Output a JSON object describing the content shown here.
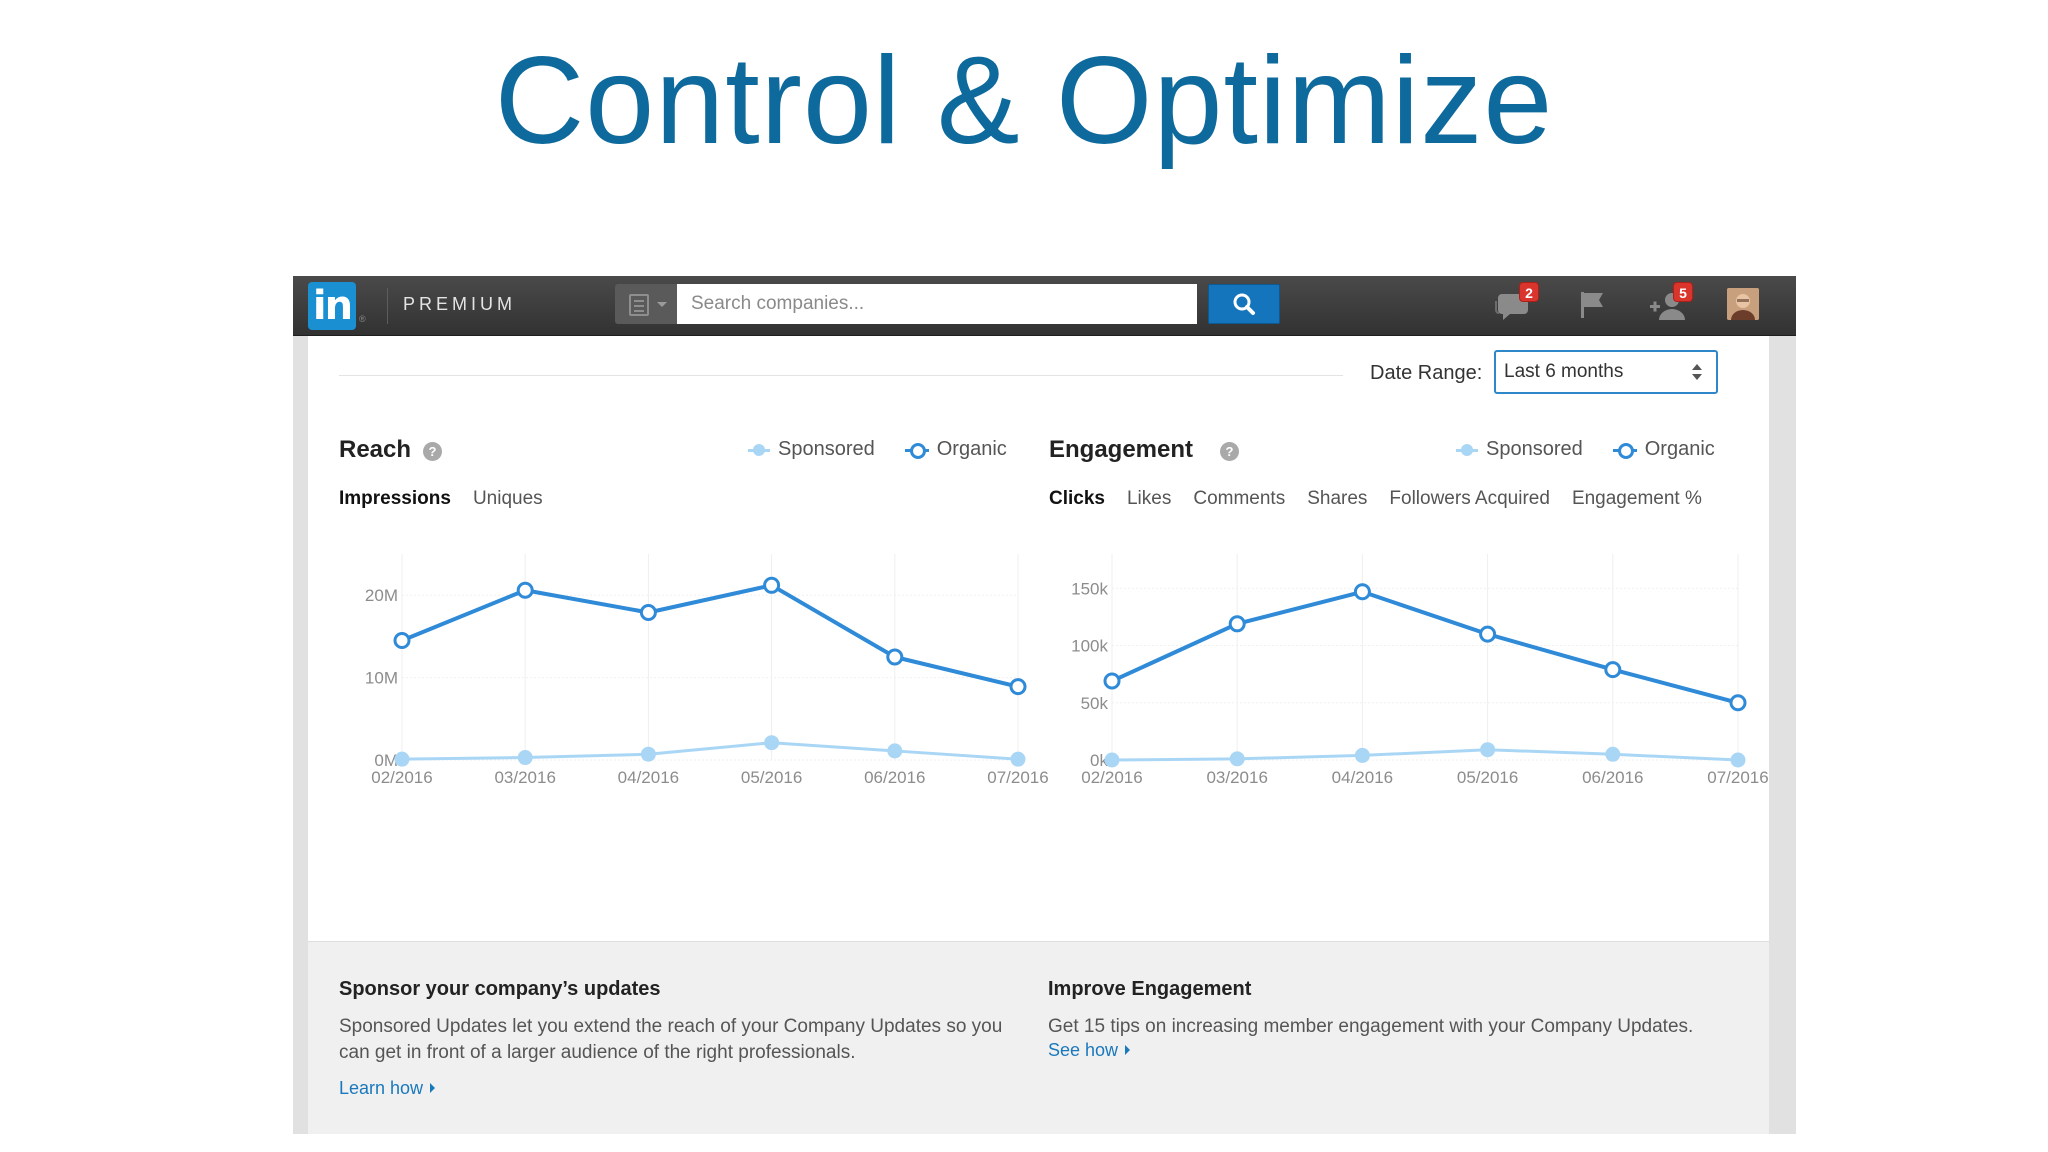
{
  "slide": {
    "title": "Control & Optimize"
  },
  "colors": {
    "title": "#0e6a9c",
    "organic": "#2f8ad8",
    "sponsored": "#aad6f6",
    "accent": "#1475bd",
    "badge": "#d9352c"
  },
  "topbar": {
    "logo_text": "in",
    "logo_mark": "®",
    "premium_label": "PREMIUM",
    "search_type_icon": "building-icon",
    "search_placeholder": "Search companies...",
    "search_button_icon": "search-icon",
    "messages_badge": "2",
    "connections_badge": "5",
    "icons": [
      "messages-icon",
      "flag-icon",
      "add-connection-icon",
      "avatar"
    ]
  },
  "filters": {
    "date_range_label": "Date Range:",
    "date_range_value": "Last 6 months"
  },
  "legend": {
    "sponsored": "Sponsored",
    "organic": "Organic"
  },
  "reach": {
    "title": "Reach",
    "help": "?",
    "tabs": [
      {
        "label": "Impressions",
        "active": true
      },
      {
        "label": "Uniques",
        "active": false
      }
    ]
  },
  "engagement": {
    "title": "Engagement",
    "help": "?",
    "tabs": [
      {
        "label": "Clicks",
        "active": true
      },
      {
        "label": "Likes",
        "active": false
      },
      {
        "label": "Comments",
        "active": false
      },
      {
        "label": "Shares",
        "active": false
      },
      {
        "label": "Followers Acquired",
        "active": false
      },
      {
        "label": "Engagement %",
        "active": false
      }
    ]
  },
  "chart_data": [
    {
      "type": "line",
      "title": "Reach",
      "x": [
        "02/2016",
        "03/2016",
        "04/2016",
        "05/2016",
        "06/2016",
        "07/2016"
      ],
      "y_ticks": [
        "0M",
        "10M",
        "20M"
      ],
      "ylim": [
        0,
        25
      ],
      "y_unit": "M",
      "grid": true,
      "series": [
        {
          "name": "Organic",
          "values": [
            14.5,
            20.6,
            17.9,
            21.2,
            12.5,
            8.9
          ]
        },
        {
          "name": "Sponsored",
          "values": [
            0.1,
            0.3,
            0.7,
            2.1,
            1.1,
            0.1
          ]
        }
      ]
    },
    {
      "type": "line",
      "title": "Engagement",
      "x": [
        "02/2016",
        "03/2016",
        "04/2016",
        "05/2016",
        "06/2016",
        "07/2016"
      ],
      "y_ticks": [
        "0k",
        "50k",
        "100k",
        "150k"
      ],
      "ylim": [
        0,
        180
      ],
      "y_unit": "k",
      "grid": true,
      "series": [
        {
          "name": "Organic",
          "values": [
            69,
            119,
            147,
            110,
            79,
            50
          ]
        },
        {
          "name": "Sponsored",
          "values": [
            0,
            1,
            4,
            9,
            5,
            0
          ]
        }
      ]
    }
  ],
  "promos": {
    "sponsor": {
      "title": "Sponsor your company’s updates",
      "body": "Sponsored Updates let you extend the reach of your Company Updates so you can get in front of a larger audience of the right professionals.",
      "link": "Learn how"
    },
    "improve": {
      "title": "Improve Engagement",
      "body": "Get 15 tips on increasing member engagement with your Company Updates.",
      "link": "See how"
    }
  }
}
